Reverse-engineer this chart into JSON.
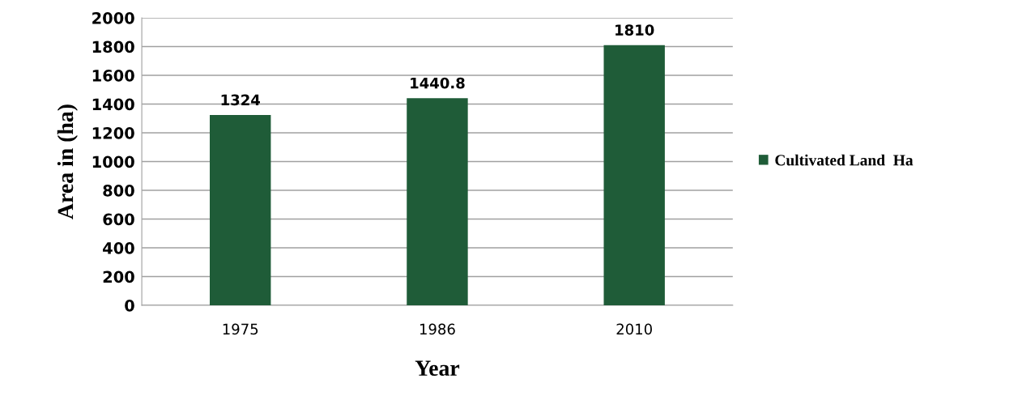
{
  "chart_data": {
    "type": "bar",
    "xlabel": "Year",
    "ylabel": "Area in (ha)",
    "categories": [
      "1975",
      "1986",
      "2010"
    ],
    "series": [
      {
        "name": "Cultivated Land  Ha",
        "color": "#1f5c38",
        "values": [
          1324,
          1440.8,
          1810
        ]
      }
    ],
    "ylim": [
      0,
      2000
    ],
    "yticks": [
      0,
      200,
      400,
      600,
      800,
      1000,
      1200,
      1400,
      1600,
      1800,
      2000
    ],
    "grid": "y",
    "legend": "right",
    "data_labels": true
  }
}
